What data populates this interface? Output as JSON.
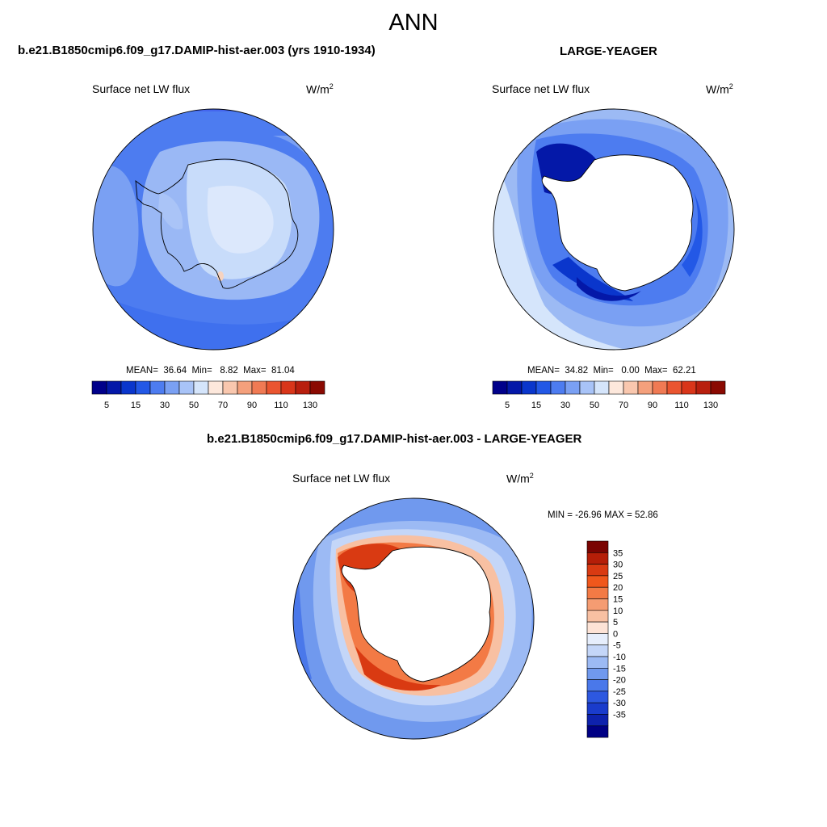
{
  "title": "ANN",
  "colors": {
    "coastline": "#000000",
    "land_mask": "#ffffff",
    "panel1_ocean": "#4d7cf0",
    "panel1_land": "#c8dcfa"
  },
  "panels": [
    {
      "case": "b.e21.B1850cmip6.f09_g17.DAMIP-hist-aer.003 (yrs 1910-1934)",
      "variable": "Surface net LW flux",
      "units_base": "W/m",
      "units_exp": "2",
      "stats": {
        "mean_label": "MEAN=",
        "mean": "36.64",
        "min_label": "Min=",
        "min": "8.82",
        "max_label": "Max=",
        "max": "81.04"
      }
    },
    {
      "case": "LARGE-YEAGER",
      "variable": "Surface net LW flux",
      "units_base": "W/m",
      "units_exp": "2",
      "stats": {
        "mean_label": "MEAN=",
        "mean": "34.82",
        "min_label": "Min=",
        "min": "0.00",
        "max_label": "Max=",
        "max": "62.21"
      }
    }
  ],
  "colorbar_abs": {
    "colors": [
      "#00008a",
      "#0418a8",
      "#0a36cc",
      "#2358e6",
      "#4d7cf0",
      "#7aa0f3",
      "#a8c3f7",
      "#d5e5fb",
      "#fde8dc",
      "#f9c7ae",
      "#f4a07c",
      "#f07a54",
      "#ea5530",
      "#d9361a",
      "#b81f0e",
      "#8a0a02"
    ],
    "tick_labels": [
      "5",
      "15",
      "30",
      "50",
      "70",
      "90",
      "110",
      "130"
    ]
  },
  "diff": {
    "title": "b.e21.B1850cmip6.f09_g17.DAMIP-hist-aer.003 - LARGE-YEAGER",
    "variable": "Surface net LW flux",
    "units_base": "W/m",
    "units_exp": "2",
    "minmax": "MIN = -26.96 MAX =  52.86",
    "colorbar": {
      "colors": [
        "#7a0402",
        "#b51e08",
        "#d93a12",
        "#f0571c",
        "#f37a45",
        "#f59c72",
        "#f8c0a2",
        "#fde3d6",
        "#e6eefc",
        "#c4d6f8",
        "#9cbaf4",
        "#7099ee",
        "#4a78ea",
        "#2d58e0",
        "#1a3ccc",
        "#0e22ad",
        "#000084"
      ],
      "labels": [
        "35",
        "30",
        "25",
        "20",
        "15",
        "10",
        "5",
        "0",
        "-5",
        "-10",
        "-15",
        "-20",
        "-25",
        "-30",
        "-35"
      ]
    }
  }
}
